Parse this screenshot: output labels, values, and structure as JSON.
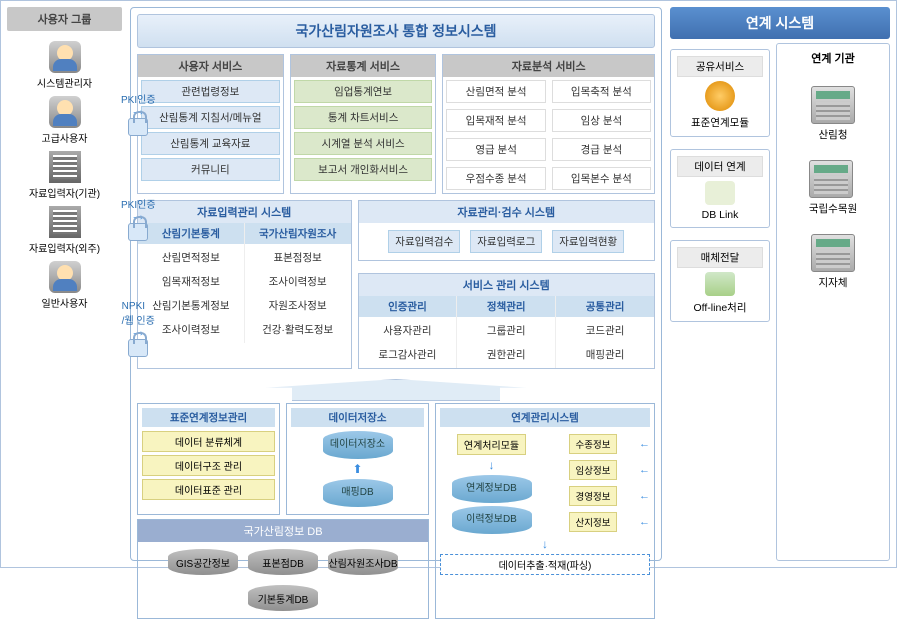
{
  "left": {
    "group_title": "사용자 그룹",
    "users": [
      {
        "label": "시스템관리자",
        "icon": "user"
      },
      {
        "label": "고급사용자",
        "icon": "user"
      },
      {
        "label": "자료입력자(기관)",
        "icon": "building"
      },
      {
        "label": "자료입력자(외주)",
        "icon": "building"
      },
      {
        "label": "일반사용자",
        "icon": "user"
      }
    ],
    "auth": [
      "PKI인증",
      "PKI인증",
      "NPKI\n/웹 인증"
    ]
  },
  "center": {
    "title": "국가산림자원조사 통합 정보시스템",
    "svc_user": {
      "head": "사용자 서비스",
      "items": [
        "관련법령정보",
        "산림통계 지침서/메뉴얼",
        "산림통계 교육자료",
        "커뮤니티"
      ],
      "cls": "blue-item"
    },
    "svc_stat": {
      "head": "자료통계 서비스",
      "items": [
        "임업통계연보",
        "통계 차트서비스",
        "시계열 분석 서비스",
        "보고서 개인화서비스"
      ],
      "cls": "green-item"
    },
    "svc_anal": {
      "head": "자료분석 서비스",
      "rows": [
        [
          "산림면적 분석",
          "입목축적 분석"
        ],
        [
          "입목재적 분석",
          "임상 분석"
        ],
        [
          "영급 분석",
          "경급 분석"
        ],
        [
          "우점수종 분석",
          "입목본수 분석"
        ]
      ],
      "cls": "white-item"
    },
    "input_sys": {
      "head": "자료입력관리 시스템",
      "cols": [
        {
          "head": "산림기본통계",
          "items": [
            "산림면적정보",
            "임목재적정보",
            "산림기본통계정보",
            "조사이력정보"
          ]
        },
        {
          "head": "국가산림자원조사",
          "items": [
            "표본점정보",
            "조사이력정보",
            "자원조사정보",
            "건강·활력도정보"
          ]
        }
      ]
    },
    "mgmt_sys": {
      "head": "자료관리·검수 시스템",
      "items": [
        "자료입력검수",
        "자료입력로그",
        "자료입력현황"
      ]
    },
    "svc_mgmt": {
      "head": "서비스 관리 시스템",
      "cols": [
        {
          "head": "인증관리",
          "items": [
            "사용자관리",
            "로그감사관리"
          ]
        },
        {
          "head": "정책관리",
          "items": [
            "그룹관리",
            "권한관리"
          ]
        },
        {
          "head": "공통관리",
          "items": [
            "코드관리",
            "매핑관리"
          ]
        }
      ]
    },
    "std_mgmt": {
      "head": "표준연계정보관리",
      "items": [
        "데이터 분류체계",
        "데이터구조 관리",
        "데이터표준 관리"
      ]
    },
    "store": {
      "head": "데이터저장소",
      "items": [
        "데이터저장소",
        "매핑DB"
      ]
    },
    "link_sys": {
      "head": "연계관리시스템",
      "module": "연계처리모듈",
      "dbs": [
        "연계정보DB",
        "이력정보DB"
      ],
      "infos": [
        "수종정보",
        "임상정보",
        "경영정보",
        "산지정보"
      ],
      "extract": "데이터추출·적재(파싱)"
    },
    "db": {
      "head": "국가산림정보 DB",
      "items": [
        "GIS공간정보",
        "표본점DB",
        "산림자원조사DB",
        "기본통계DB"
      ]
    }
  },
  "right": {
    "title": "연계 시스템",
    "boxes": [
      {
        "title": "공유서비스",
        "label": "표준연계모듈",
        "icon": "svc"
      },
      {
        "title": "데이터 연계",
        "label": "DB Link",
        "icon": "link"
      },
      {
        "title": "매체전달",
        "label": "Off-line처리",
        "icon": "media"
      }
    ],
    "inst": {
      "title": "연계 기관",
      "items": [
        "산림청",
        "국립수목원",
        "지자체"
      ]
    }
  },
  "colors": {
    "border": "#b0c4de",
    "title_text": "#2a5da0",
    "blue_fill": "#dde8f5",
    "green_fill": "#dbe8cb",
    "gray_head": "#c8c8c8",
    "yellow": "#f8f4c0"
  }
}
